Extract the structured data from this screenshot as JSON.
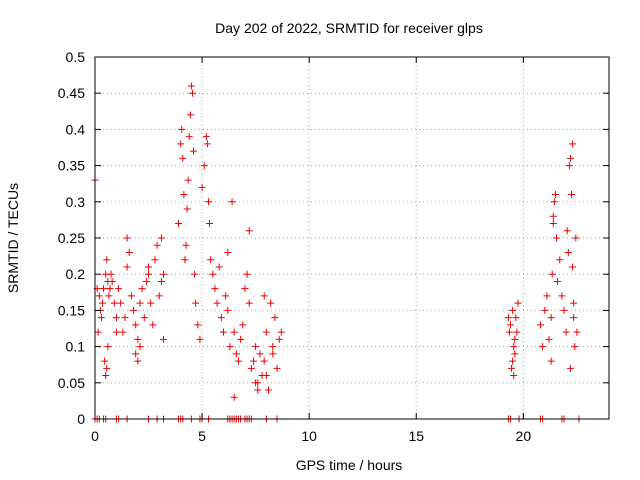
{
  "chart_data": {
    "type": "scatter",
    "title": "Day 202 of 2022, SRMTID for receiver glps",
    "xlabel": "GPS time / hours",
    "ylabel": "SRMTID / TECUs",
    "xlim": [
      0,
      24
    ],
    "ylim": [
      0,
      0.5
    ],
    "xticks": [
      0,
      5,
      10,
      15,
      20
    ],
    "xtick_labels": [
      "0",
      "5",
      "10",
      "15",
      "20"
    ],
    "yticks": [
      0,
      0.05,
      0.1,
      0.15,
      0.2,
      0.25,
      0.3,
      0.35,
      0.4,
      0.45,
      0.5
    ],
    "ytick_labels": [
      "0",
      "0.05",
      "0.1",
      "0.15",
      "0.2",
      "0.25",
      "0.3",
      "0.35",
      "0.4",
      "0.45",
      "0.5"
    ],
    "grid": true,
    "marker": "+",
    "color": "#ee0000",
    "series": [
      {
        "name": "SRMTID",
        "x": [
          0.0,
          0.1,
          0.15,
          0.2,
          0.25,
          0.3,
          0.35,
          0.4,
          0.45,
          0.5,
          0.55,
          0.6,
          0.65,
          0.7,
          0.75,
          0.8,
          0.9,
          1.0,
          1.1,
          1.2,
          1.3,
          1.4,
          1.5,
          1.6,
          1.7,
          1.8,
          1.9,
          2.0,
          2.1,
          2.2,
          2.3,
          2.4,
          2.5,
          2.6,
          2.7,
          2.8,
          2.9,
          3.0,
          3.1,
          3.2,
          0.5,
          0.55,
          0.6,
          1.0,
          1.5,
          1.9,
          2.0,
          2.1,
          2.5,
          3.1,
          3.2,
          3.9,
          4.0,
          4.05,
          4.1,
          4.15,
          4.2,
          4.25,
          4.3,
          4.35,
          4.4,
          4.45,
          4.5,
          4.55,
          4.6,
          4.65,
          4.7,
          4.8,
          4.9,
          5.0,
          5.1,
          5.2,
          5.25,
          5.3,
          5.35,
          5.4,
          5.5,
          5.6,
          5.7,
          5.8,
          5.9,
          6.0,
          6.1,
          6.2,
          6.3,
          6.4,
          6.5,
          6.6,
          6.7,
          6.8,
          6.9,
          7.0,
          7.1,
          7.2,
          7.3,
          7.4,
          7.5,
          7.6,
          7.7,
          7.8,
          7.9,
          8.0,
          8.1,
          8.2,
          8.3,
          8.4,
          8.5,
          8.6,
          8.7,
          6.5,
          7.2,
          7.5,
          7.6,
          7.9,
          8.0,
          8.3,
          6.2,
          19.3,
          19.35,
          19.4,
          19.45,
          19.5,
          19.55,
          19.6,
          19.65,
          19.7,
          19.75,
          19.5,
          19.55,
          19.6,
          20.8,
          20.9,
          21.0,
          21.1,
          21.2,
          21.3,
          21.35,
          21.4,
          21.45,
          21.5,
          21.55,
          21.6,
          21.7,
          21.8,
          21.9,
          22.0,
          22.05,
          22.1,
          22.15,
          22.2,
          22.25,
          22.3,
          22.35,
          22.4,
          22.45,
          22.5,
          21.3,
          21.4,
          22.2,
          22.3,
          22.35,
          0.0,
          0.1,
          0.2,
          0.4,
          0.5,
          1.0,
          1.1,
          1.5,
          2.5,
          2.9,
          3.2,
          3.9,
          4.0,
          4.1,
          4.5,
          4.9,
          5.0,
          5.3,
          6.2,
          6.3,
          6.4,
          6.5,
          6.6,
          6.7,
          6.8,
          7.0,
          7.1,
          7.2,
          7.3,
          8.0,
          8.5,
          19.3,
          19.4,
          19.8,
          20.8,
          20.9,
          21.8,
          21.9,
          22.6
        ],
        "y": [
          0.33,
          0.18,
          0.12,
          0.17,
          0.15,
          0.14,
          0.16,
          0.18,
          0.08,
          0.2,
          0.22,
          0.19,
          0.17,
          0.18,
          0.2,
          0.19,
          0.16,
          0.14,
          0.18,
          0.16,
          0.12,
          0.14,
          0.21,
          0.23,
          0.17,
          0.15,
          0.13,
          0.11,
          0.16,
          0.18,
          0.14,
          0.19,
          0.2,
          0.16,
          0.13,
          0.22,
          0.24,
          0.17,
          0.19,
          0.11,
          0.06,
          0.07,
          0.1,
          0.12,
          0.25,
          0.09,
          0.08,
          0.1,
          0.21,
          0.25,
          0.2,
          0.27,
          0.38,
          0.4,
          0.36,
          0.31,
          0.22,
          0.24,
          0.29,
          0.33,
          0.39,
          0.42,
          0.46,
          0.45,
          0.37,
          0.2,
          0.16,
          0.13,
          0.11,
          0.32,
          0.35,
          0.39,
          0.38,
          0.3,
          0.27,
          0.22,
          0.2,
          0.18,
          0.16,
          0.21,
          0.14,
          0.12,
          0.17,
          0.15,
          0.1,
          0.3,
          0.12,
          0.09,
          0.08,
          0.11,
          0.13,
          0.18,
          0.2,
          0.16,
          0.07,
          0.08,
          0.1,
          0.05,
          0.09,
          0.06,
          0.08,
          0.12,
          0.04,
          0.16,
          0.1,
          0.14,
          0.07,
          0.11,
          0.12,
          0.03,
          0.26,
          0.05,
          0.04,
          0.17,
          0.06,
          0.09,
          0.23,
          0.14,
          0.12,
          0.13,
          0.07,
          0.15,
          0.1,
          0.11,
          0.14,
          0.12,
          0.16,
          0.08,
          0.06,
          0.09,
          0.13,
          0.1,
          0.15,
          0.17,
          0.11,
          0.14,
          0.2,
          0.27,
          0.3,
          0.31,
          0.25,
          0.19,
          0.22,
          0.17,
          0.15,
          0.12,
          0.26,
          0.23,
          0.35,
          0.36,
          0.31,
          0.38,
          0.14,
          0.1,
          0.25,
          0.12,
          0.08,
          0.28,
          0.07,
          0.21,
          0.16,
          0,
          0,
          0,
          0,
          0,
          0,
          0,
          0,
          0,
          0,
          0,
          0,
          0,
          0,
          0,
          0,
          0,
          0,
          0,
          0,
          0,
          0,
          0,
          0,
          0,
          0,
          0,
          0,
          0,
          0,
          0,
          0,
          0,
          0,
          0,
          0,
          0,
          0,
          0
        ]
      }
    ]
  }
}
